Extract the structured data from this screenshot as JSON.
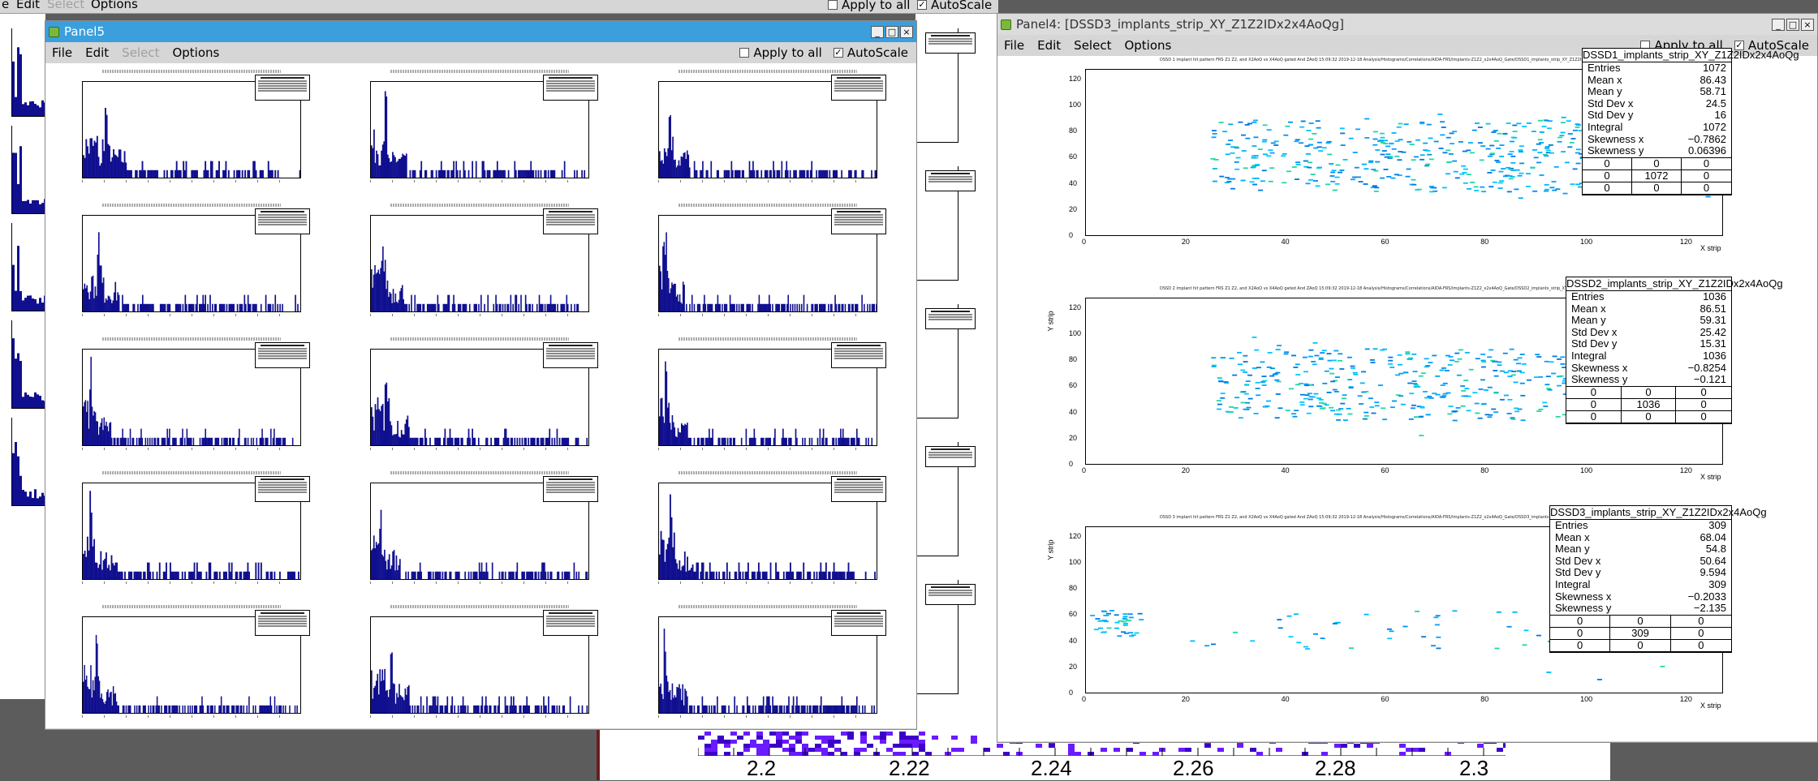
{
  "background_window": {
    "menu": [
      "e",
      "Edit",
      "Select",
      "Options"
    ],
    "apply_label": "Apply to all",
    "autoscale_label": "AutoScale"
  },
  "panel5": {
    "title": "Panel5",
    "menu": [
      {
        "label": "File",
        "disabled": false
      },
      {
        "label": "Edit",
        "disabled": false
      },
      {
        "label": "Select",
        "disabled": true
      },
      {
        "label": "Options",
        "disabled": false
      }
    ],
    "apply_label": "Apply to all",
    "apply_checked": false,
    "autoscale_label": "AutoScale",
    "autoscale_checked": true,
    "hist_color": "#0f0f8f"
  },
  "panel4": {
    "title": "Panel4: [DSSD3_implants_strip_XY_Z1Z2IDx2x4AoQg]",
    "menu": [
      {
        "label": "File",
        "disabled": false
      },
      {
        "label": "Edit",
        "disabled": false
      },
      {
        "label": "Select",
        "disabled": false
      },
      {
        "label": "Options",
        "disabled": false
      }
    ],
    "apply_label": "Apply to all",
    "apply_checked": false,
    "autoscale_label": "AutoScale",
    "autoscale_checked": true,
    "x_ticks": [
      "0",
      "20",
      "40",
      "60",
      "80",
      "100",
      "120"
    ],
    "y_ticks": [
      "0",
      "20",
      "40",
      "60",
      "80",
      "100",
      "120"
    ],
    "x_label": "X strip",
    "y_label": "Y strip",
    "pads": [
      {
        "title": "DSSD 1 implant hit pattern FRS Z1 Z2, and X2AoQ vs X4AoQ gated And ZAoQ  15:09:32  2019-12-18  Analysis/Histograms/Correlations/AIDA-FRS/Implants-Z1Z2_x2x4AoQ_Gate/DSSD1_implants_strip_XY_Z1Z2IDx2x4AoQg",
        "stats_name": "DSSD1_implants_strip_XY_Z1Z2IDx2x4AoQg",
        "entries": "1072",
        "mean_x": "86.43",
        "mean_y": "58.71",
        "std_x": "24.5",
        "std_y": "16",
        "integral": "1072",
        "skew_x": "−0.7862",
        "skew_y": "0.06396",
        "grid": [
          "0",
          "0",
          "0",
          "0",
          "1072",
          "0",
          "0",
          "0",
          "0"
        ],
        "show_y_label": false
      },
      {
        "title": "DSSD 2 implant hit pattern FRS Z1 Z2, and X2AoQ vs X4AoQ gated And ZAoQ  15:09:32  2019-12-18  Analysis/Histograms/Correlations/AIDA-FRS/Implants-Z1Z2_x2x4AoQ_Gate/DSSD2_implants_strip_XY_Z1Z2IDx2x4AoQg",
        "stats_name": "DSSD2_implants_strip_XY_Z1Z2IDx2x4AoQg",
        "entries": "1036",
        "mean_x": "86.51",
        "mean_y": "59.31",
        "std_x": "25.42",
        "std_y": "15.31",
        "integral": "1036",
        "skew_x": "−0.8254",
        "skew_y": "−0.121",
        "grid": [
          "0",
          "0",
          "0",
          "0",
          "1036",
          "0",
          "0",
          "0",
          "0"
        ],
        "show_y_label": true
      },
      {
        "title": "DSSD 3 implant hit pattern FRS Z1 Z2, and X2AoQ vs X4AoQ gated And ZAoQ  15:09:32  2019-12-18  Analysis/Histograms/Correlations/AIDA-FRS/Implants-Z1Z2_x2x4AoQ_Gate/DSSD3_implants_strip_XY_Z1Z2IDx2x4AoQg",
        "stats_name": "DSSD3_implants_strip_XY_Z1Z2IDx2x4AoQg",
        "entries": "309",
        "mean_x": "68.04",
        "mean_y": "54.8",
        "std_x": "50.64",
        "std_y": "9.594",
        "integral": "309",
        "skew_x": "−0.2033",
        "skew_y": "−2.135",
        "grid": [
          "0",
          "0",
          "0",
          "0",
          "309",
          "0",
          "0",
          "0",
          "0"
        ],
        "show_y_label": true
      }
    ],
    "stat_labels": {
      "entries": "Entries",
      "mean_x": "Mean x",
      "mean_y": "Mean y",
      "std_x": "Std Dev x",
      "std_y": "Std Dev y",
      "integral": "Integral",
      "skew_x": "Skewness x",
      "skew_y": "Skewness y"
    }
  },
  "bottom_axis": {
    "ticks": [
      "2.2",
      "2.22",
      "2.24",
      "2.26",
      "2.28",
      "2.3"
    ]
  }
}
